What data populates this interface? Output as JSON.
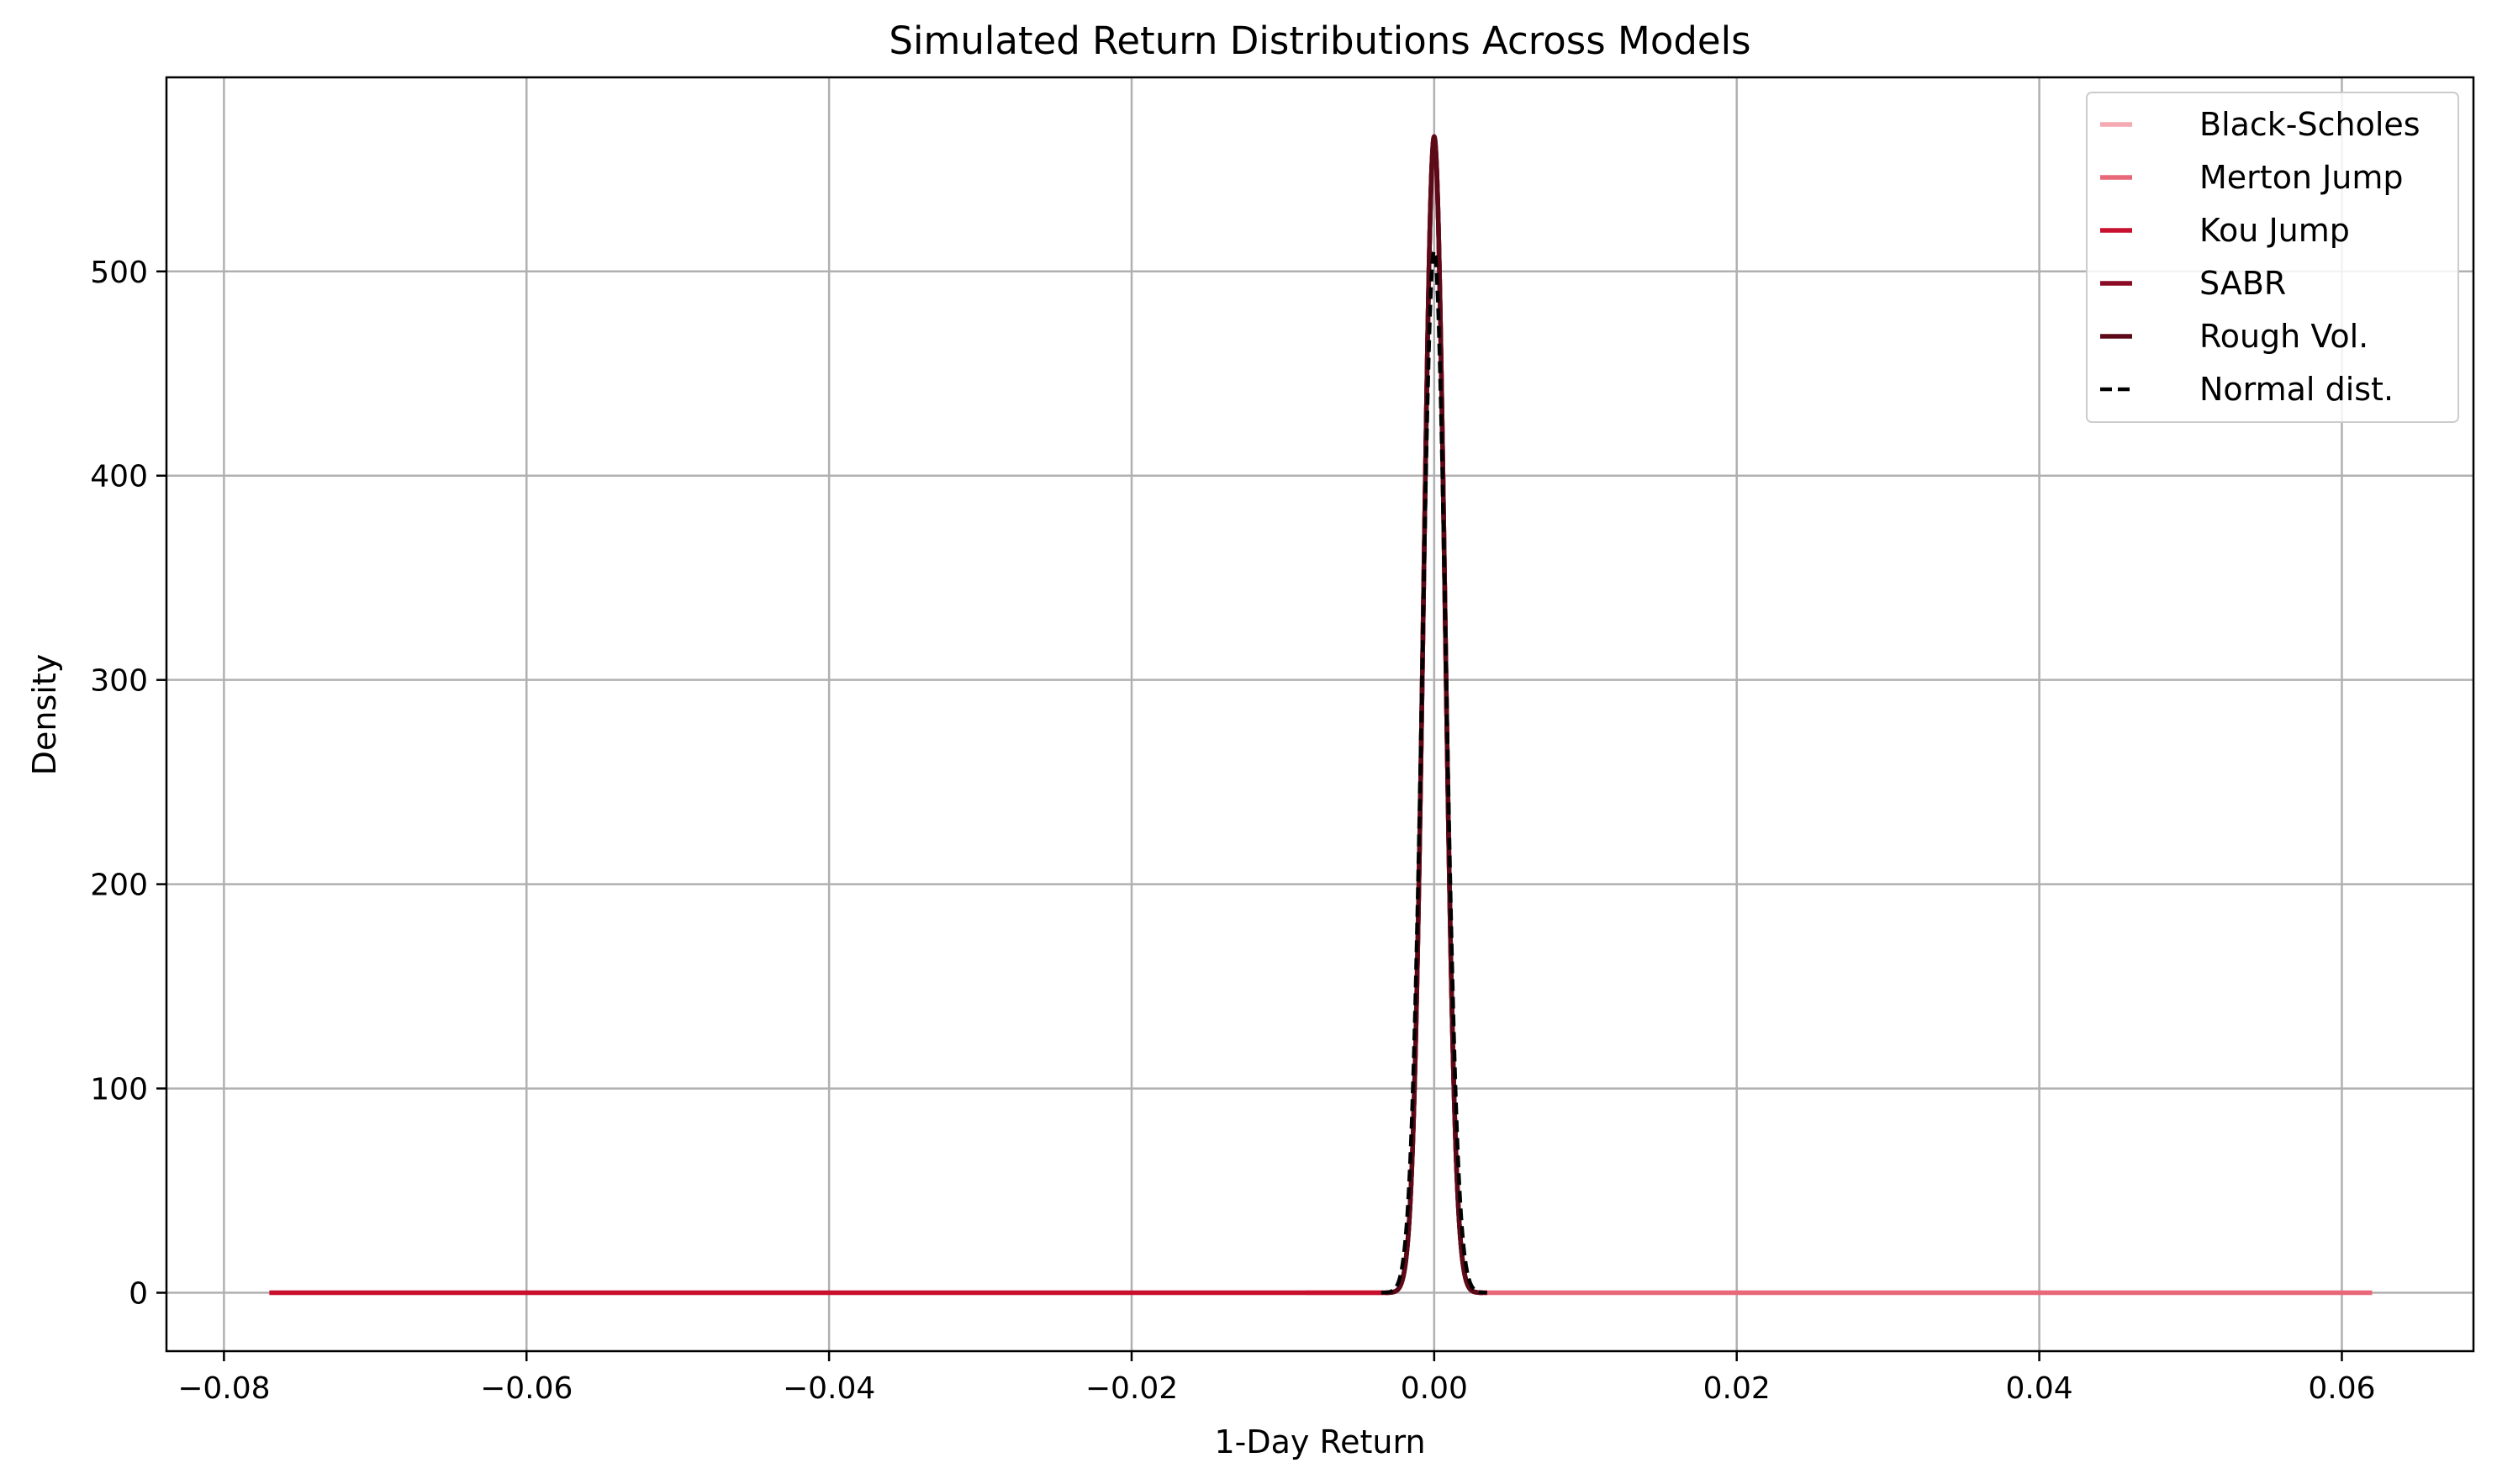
{
  "chart_data": {
    "type": "line",
    "title": "Simulated Return Distributions Across Models",
    "xlabel": "1-Day Return",
    "ylabel": "Density",
    "xlim": [
      -0.0838,
      0.0687
    ],
    "ylim": [
      -28.6,
      595
    ],
    "xticks": [
      -0.08,
      -0.06,
      -0.04,
      -0.02,
      0.0,
      0.02,
      0.04,
      0.06
    ],
    "xtick_labels": [
      "−0.08",
      "−0.06",
      "−0.04",
      "−0.02",
      "0.00",
      "0.02",
      "0.04",
      "0.06"
    ],
    "yticks": [
      0,
      100,
      200,
      300,
      400,
      500
    ],
    "ytick_labels": [
      "0",
      "100",
      "200",
      "300",
      "400",
      "500"
    ],
    "grid": true,
    "legend_position": "top-right",
    "series": [
      {
        "name": "Black-Scholes",
        "color": "#f4a9b3",
        "dash": "solid",
        "x_range": [
          -0.0032,
          0.0032
        ],
        "peak": 566,
        "sigma": 0.0007
      },
      {
        "name": "Merton Jump",
        "color": "#e8687a",
        "dash": "solid",
        "x_range": [
          -0.0085,
          0.062
        ],
        "peak": 566,
        "sigma": 0.0007
      },
      {
        "name": "Kou Jump",
        "color": "#c8102e",
        "dash": "solid",
        "x_range": [
          -0.077,
          0.0035
        ],
        "peak": 566,
        "sigma": 0.0007
      },
      {
        "name": "SABR",
        "color": "#8b0a24",
        "dash": "solid",
        "x_range": [
          -0.0032,
          0.0032
        ],
        "peak": 566,
        "sigma": 0.0007
      },
      {
        "name": "Rough Vol.",
        "color": "#5c0a18",
        "dash": "solid",
        "x_range": [
          -0.0032,
          0.0032
        ],
        "peak": 566,
        "sigma": 0.0007
      },
      {
        "name": "Normal dist.",
        "color": "#000000",
        "dash": "dashed",
        "x_range": [
          -0.0035,
          0.0035
        ],
        "peak": 510,
        "sigma": 0.00078
      }
    ]
  }
}
